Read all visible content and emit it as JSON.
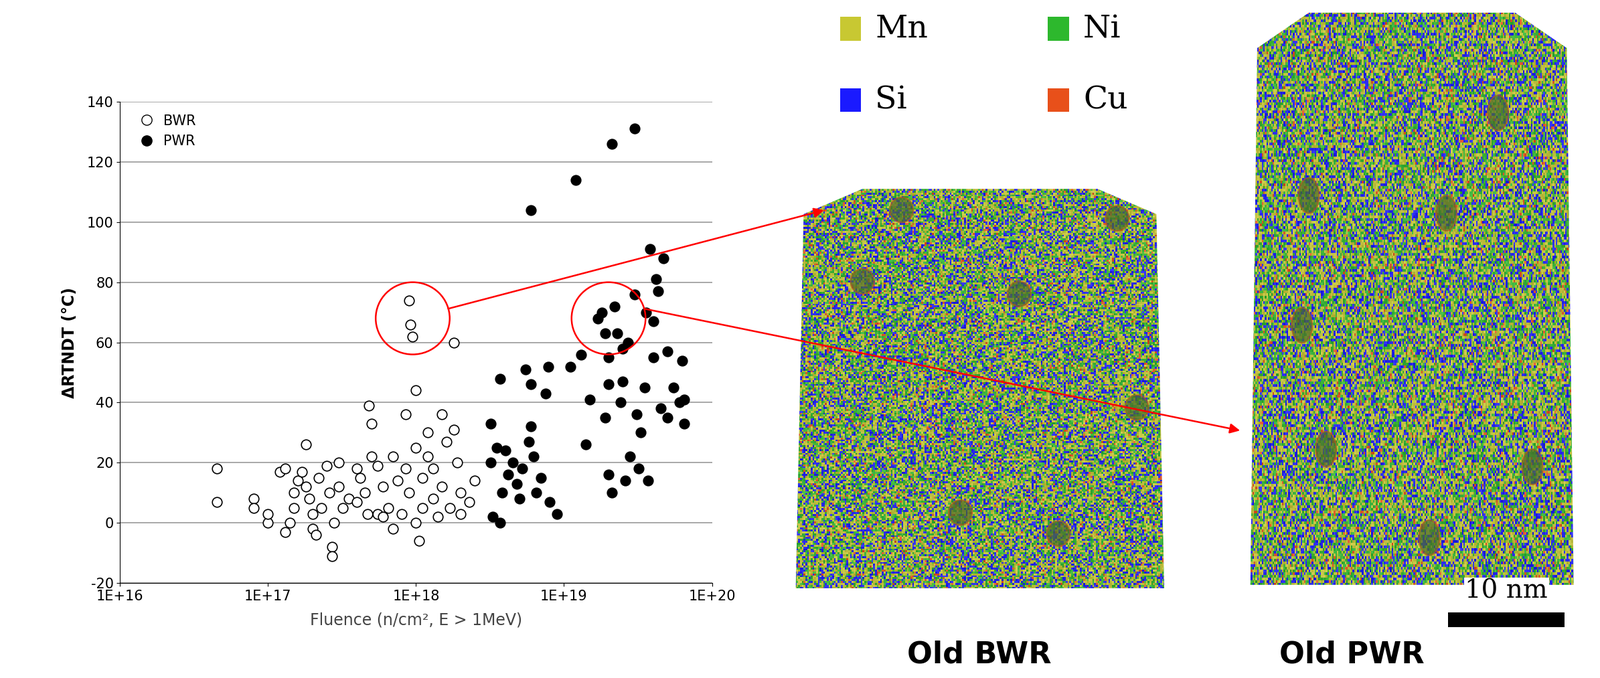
{
  "chart_data": {
    "type": "scatter",
    "x_label": "Fluence (n/cm², E > 1MeV)",
    "y_label": "ΔRTNDT (°C)",
    "log": "x",
    "grid": true,
    "legend": "upper left",
    "xlim": [
      1e+16,
      1e+20
    ],
    "xticks": [
      {
        "value": 1e+16,
        "label": "1E+16"
      },
      {
        "value": 1e+17,
        "label": "1E+17"
      },
      {
        "value": 1e+18,
        "label": "1E+18"
      },
      {
        "value": 1e+19,
        "label": "1E+19"
      },
      {
        "value": 1e+20,
        "label": "1E+20"
      }
    ],
    "ylim": [
      -20,
      140
    ],
    "yticks": [
      -20,
      0,
      20,
      40,
      60,
      80,
      100,
      120,
      140
    ],
    "series": [
      {
        "name": "BWR",
        "color": "#ffffff",
        "marker": "o",
        "x": [
          4.5e+16,
          4.5e+16,
          8e+16,
          8e+16,
          1e+17,
          1e+17,
          1.2e+17,
          1.3e+17,
          1.3e+17,
          1.4e+17,
          1.5e+17,
          1.5e+17,
          1.6e+17,
          1.7e+17,
          1.8e+17,
          1.8e+17,
          1.9e+17,
          2e+17,
          2e+17,
          2.1e+17,
          2.2e+17,
          2.3e+17,
          2.5e+17,
          2.6e+17,
          2.7e+17,
          2.7e+17,
          2.8e+17,
          3e+17,
          3.2e+17,
          3.5e+17,
          4e+17,
          4.2e+17,
          4.5e+17,
          4.7e+17,
          4.8e+17,
          5e+17,
          5e+17,
          5.5e+17,
          5.5e+17,
          6e+17,
          6.5e+17,
          7e+17,
          7e+17,
          7.5e+17,
          8e+17,
          8.5e+17,
          8.5e+17,
          9e+17,
          9.2e+17,
          9.5e+17,
          9e+17,
          1e+18,
          1e+18,
          1.05e+18,
          1.1e+18,
          1.1e+18,
          1.2e+18,
          1.3e+18,
          1.3e+18,
          1.4e+18,
          1.5e+18,
          1.5e+18,
          1.6e+18,
          1.7e+18,
          1.8e+18,
          1.8e+18,
          1.9e+18,
          2e+18,
          2e+18,
          2.3e+18,
          2.5e+18,
          1.2e+18,
          6e+17,
          3e+17,
          4e+17,
          1e+18
        ],
        "values": [
          18,
          7,
          8,
          5,
          0,
          3,
          17,
          18,
          -3,
          0,
          10,
          5,
          14,
          17,
          26,
          12,
          8,
          3,
          -2,
          -4,
          15,
          5,
          19,
          10,
          -8,
          -11,
          0,
          20,
          5,
          8,
          18,
          15,
          10,
          3,
          39,
          33,
          22,
          19,
          3,
          12,
          5,
          22,
          -2,
          14,
          3,
          36,
          18,
          74,
          66,
          62,
          10,
          44,
          25,
          -6,
          5,
          15,
          22,
          8,
          18,
          2,
          36,
          12,
          27,
          5,
          60,
          31,
          20,
          3,
          10,
          7,
          14,
          30,
          2,
          12,
          7,
          0
        ]
      },
      {
        "name": "PWR",
        "color": "#000000",
        "marker": "o",
        "x": [
          3.2e+18,
          3.2e+18,
          3.3e+18,
          3.5e+18,
          3.7e+18,
          3.7e+18,
          3.8e+18,
          4e+18,
          4.2e+18,
          4.5e+18,
          4.8e+18,
          5e+18,
          5.2e+18,
          5.5e+18,
          5.8e+18,
          6e+18,
          6e+18,
          6e+18,
          6.2e+18,
          6.5e+18,
          7e+18,
          7.5e+18,
          7.8e+18,
          8e+18,
          9e+18,
          1.1e+19,
          1.2e+19,
          1.3e+19,
          1.4e+19,
          1.5e+19,
          1.7e+19,
          1.8e+19,
          1.9e+19,
          2e+19,
          2e+19,
          2.1e+19,
          2.1e+19,
          2.2e+19,
          2.3e+19,
          2.4e+19,
          2.5e+19,
          2.6e+19,
          2.7e+19,
          2.8e+19,
          3e+19,
          3e+19,
          3.1e+19,
          3.2e+19,
          3.3e+19,
          3.5e+19,
          3.7e+19,
          3.8e+19,
          4e+19,
          4.2e+19,
          4.3e+19,
          4.5e+19,
          4.7e+19,
          5e+19,
          5e+19,
          5.5e+19,
          6e+19,
          6.3e+19,
          6.5e+19,
          6.5e+19,
          2e+19,
          2.5e+19,
          1.9e+19,
          3.6e+19,
          4e+19
        ],
        "values": [
          33,
          20,
          2,
          25,
          48,
          0,
          10,
          24,
          16,
          20,
          13,
          8,
          18,
          51,
          27,
          104,
          46,
          32,
          22,
          10,
          15,
          43,
          52,
          7,
          3,
          52,
          114,
          56,
          26,
          41,
          68,
          70,
          35,
          55,
          16,
          126,
          10,
          72,
          63,
          40,
          47,
          14,
          60,
          22,
          131,
          76,
          36,
          18,
          30,
          45,
          14,
          91,
          55,
          81,
          77,
          38,
          88,
          57,
          35,
          45,
          40,
          54,
          33,
          41,
          46,
          58,
          63,
          70,
          67
        ]
      }
    ],
    "highlights": [
      {
        "x": 9.5e+17,
        "y": 68,
        "target": "Old BWR"
      },
      {
        "x": 2e+19,
        "y": 68,
        "target": "Old PWR"
      }
    ]
  },
  "panel": {
    "legend": [
      {
        "name": "Mn",
        "color": "#c8c832"
      },
      {
        "name": "Si",
        "color": "#1a1aff"
      },
      {
        "name": "Ni",
        "color": "#2db82d"
      },
      {
        "name": "Cu",
        "color": "#e8501a"
      }
    ],
    "images": [
      "Old BWR",
      "Old PWR"
    ],
    "scale_bar": "10 nm"
  }
}
